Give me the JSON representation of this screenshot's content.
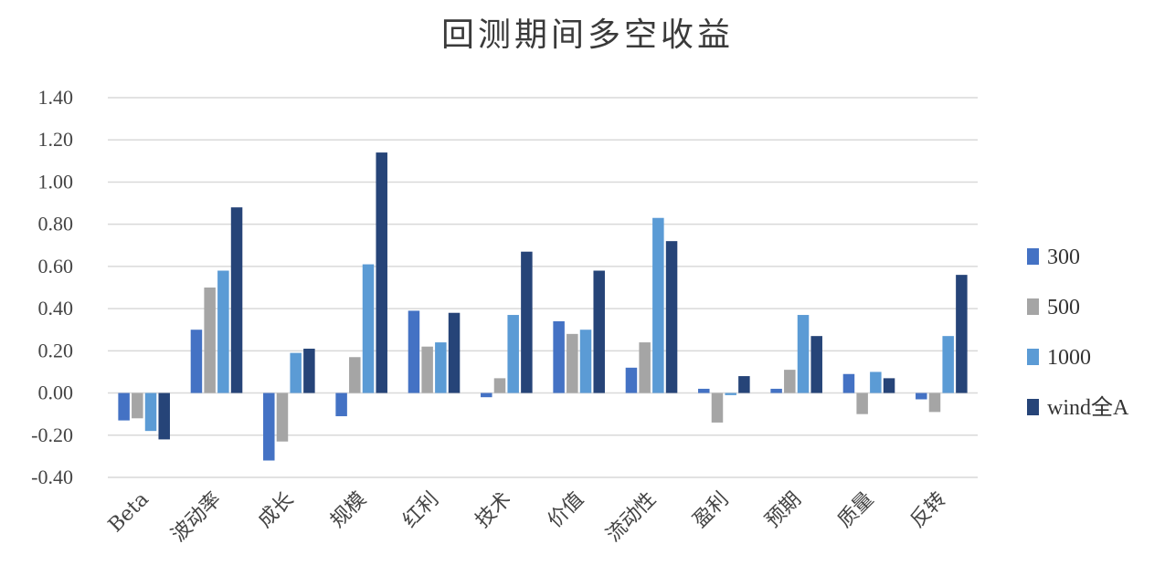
{
  "chart_data": {
    "type": "bar",
    "title": "回测期间多空收益",
    "xlabel": "",
    "ylabel": "",
    "ylim": [
      -0.4,
      1.4
    ],
    "yticks": [
      "1.40",
      "1.20",
      "1.00",
      "0.80",
      "0.60",
      "0.40",
      "0.20",
      "0.00",
      "-0.20",
      "-0.40"
    ],
    "ytick_values": [
      1.4,
      1.2,
      1.0,
      0.8,
      0.6,
      0.4,
      0.2,
      0.0,
      -0.2,
      -0.4
    ],
    "grid": true,
    "legend_position": "right",
    "categories": [
      "Beta",
      "波动率",
      "成长",
      "规模",
      "红利",
      "技术",
      "价值",
      "流动性",
      "盈利",
      "预期",
      "质量",
      "反转"
    ],
    "series": [
      {
        "name": "300",
        "color": "#4472C4",
        "values": [
          -0.13,
          0.3,
          -0.32,
          -0.11,
          0.39,
          -0.02,
          0.34,
          0.12,
          0.02,
          0.02,
          0.09,
          -0.03
        ]
      },
      {
        "name": "500",
        "color": "#A5A5A5",
        "values": [
          -0.12,
          0.5,
          -0.23,
          0.17,
          0.22,
          0.07,
          0.28,
          0.24,
          -0.14,
          0.11,
          -0.1,
          -0.09
        ]
      },
      {
        "name": "1000",
        "color": "#5B9BD5",
        "values": [
          -0.18,
          0.58,
          0.19,
          0.61,
          0.24,
          0.37,
          0.3,
          0.83,
          -0.01,
          0.37,
          0.1,
          0.27
        ]
      },
      {
        "name": "wind全A",
        "color": "#264478",
        "values": [
          -0.22,
          0.88,
          0.21,
          1.14,
          0.38,
          0.67,
          0.58,
          0.72,
          0.08,
          0.27,
          0.07,
          0.56
        ]
      }
    ]
  }
}
